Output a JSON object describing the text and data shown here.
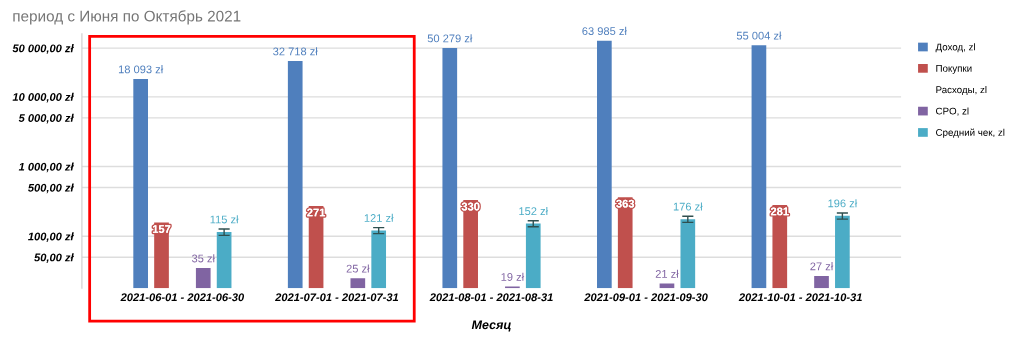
{
  "chart_data": {
    "type": "bar",
    "title": "период с Июня по Октябрь 2021",
    "xlabel": "Месяц",
    "categories": [
      "2021-06-01 - 2021-06-30",
      "2021-07-01 - 2021-07-31",
      "2021-08-01 - 2021-08-31",
      "2021-09-01 - 2021-09-30",
      "2021-10-01 - 2021-10-31"
    ],
    "series": [
      {
        "name": "Доход, zl",
        "color": "#4f7fbd",
        "values": [
          18093,
          32718,
          50279,
          63985,
          55004
        ],
        "value_labels": [
          "18 093 zł",
          "32 718 zł",
          "50 279 zł",
          "63 985 zł",
          "55 004 zł"
        ]
      },
      {
        "name": "Покупки",
        "color": "#c0504d",
        "values": [
          157,
          271,
          330,
          363,
          281
        ],
        "value_labels": [
          "157",
          "271",
          "330",
          "363",
          "281"
        ]
      },
      {
        "name": "Расходы, zl",
        "values": [
          null,
          null,
          null,
          null,
          null
        ]
      },
      {
        "name": "CPO, zl",
        "color": "#8064a2",
        "values": [
          35,
          25,
          19,
          21,
          27
        ],
        "value_labels": [
          "35 zł",
          "25 zł",
          "19 zł",
          "21 zł",
          "27 zł"
        ]
      },
      {
        "name": "Средний чек, zl",
        "color": "#4bacc6",
        "values": [
          115,
          121,
          152,
          176,
          196
        ],
        "errors": [
          12,
          12,
          15,
          18,
          20
        ],
        "value_labels": [
          "115 zł",
          "121 zł",
          "152 zł",
          "176 zł",
          "196 zł"
        ]
      }
    ],
    "log": true,
    "ylim": [
      18,
      80000
    ],
    "yticks": [
      {
        "value": 50,
        "label": "50,00 zł"
      },
      {
        "value": 100,
        "label": "100,00 zł"
      },
      {
        "value": 500,
        "label": "500,00 zł"
      },
      {
        "value": 1000,
        "label": "1 000,00 zł"
      },
      {
        "value": 5000,
        "label": "5 000,00 zł"
      },
      {
        "value": 10000,
        "label": "10 000,00 zł"
      },
      {
        "value": 50000,
        "label": "50 000,00 zł"
      }
    ],
    "grid": "y",
    "legend": "top right"
  }
}
